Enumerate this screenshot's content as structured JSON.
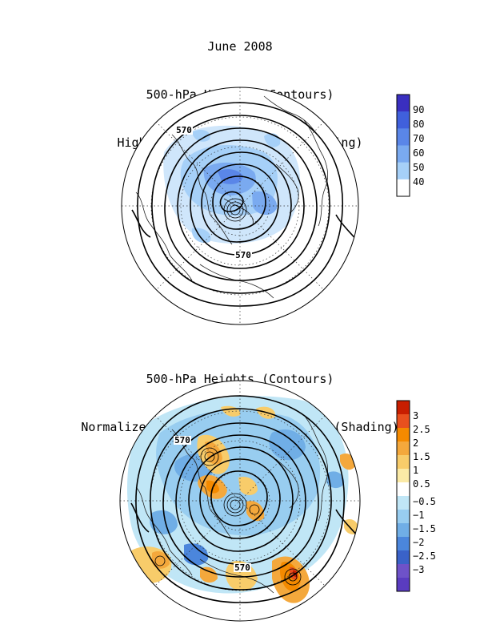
{
  "top_panel": {
    "title_lines": [
      "June 2008",
      "500-hPa Heights (Contours)",
      "High Frequency Std. Dev. (Shading)"
    ],
    "contour_labels": [
      "570",
      "570"
    ],
    "colorbar": {
      "labels": [
        "90",
        "80",
        "70",
        "60",
        "50",
        "40"
      ],
      "colors": [
        "#3a2fc0",
        "#4060dc",
        "#5a86e8",
        "#7aaaf0",
        "#a6d0f8",
        "#ffffff"
      ]
    }
  },
  "bottom_panel": {
    "title_lines": [
      "500-hPa Heights (Contours)",
      "Normalized High Frequency Variance (Shading)"
    ],
    "contour_labels": [
      "570",
      "570"
    ],
    "colorbar": {
      "labels": [
        "3",
        "2.5",
        "2",
        "1.5",
        "1",
        "0.5",
        "−0.5",
        "−1",
        "−1.5",
        "−2",
        "−2.5",
        "−3"
      ],
      "colors": [
        "#c81e00",
        "#e8501e",
        "#f48a00",
        "#f4a83c",
        "#f8cc6a",
        "#fbeaa6",
        "#ffffff",
        "#c0e6f6",
        "#98cdf0",
        "#70aee6",
        "#4b86dc",
        "#3a62c8",
        "#6e52c8",
        "#5a3cc0"
      ]
    }
  }
}
